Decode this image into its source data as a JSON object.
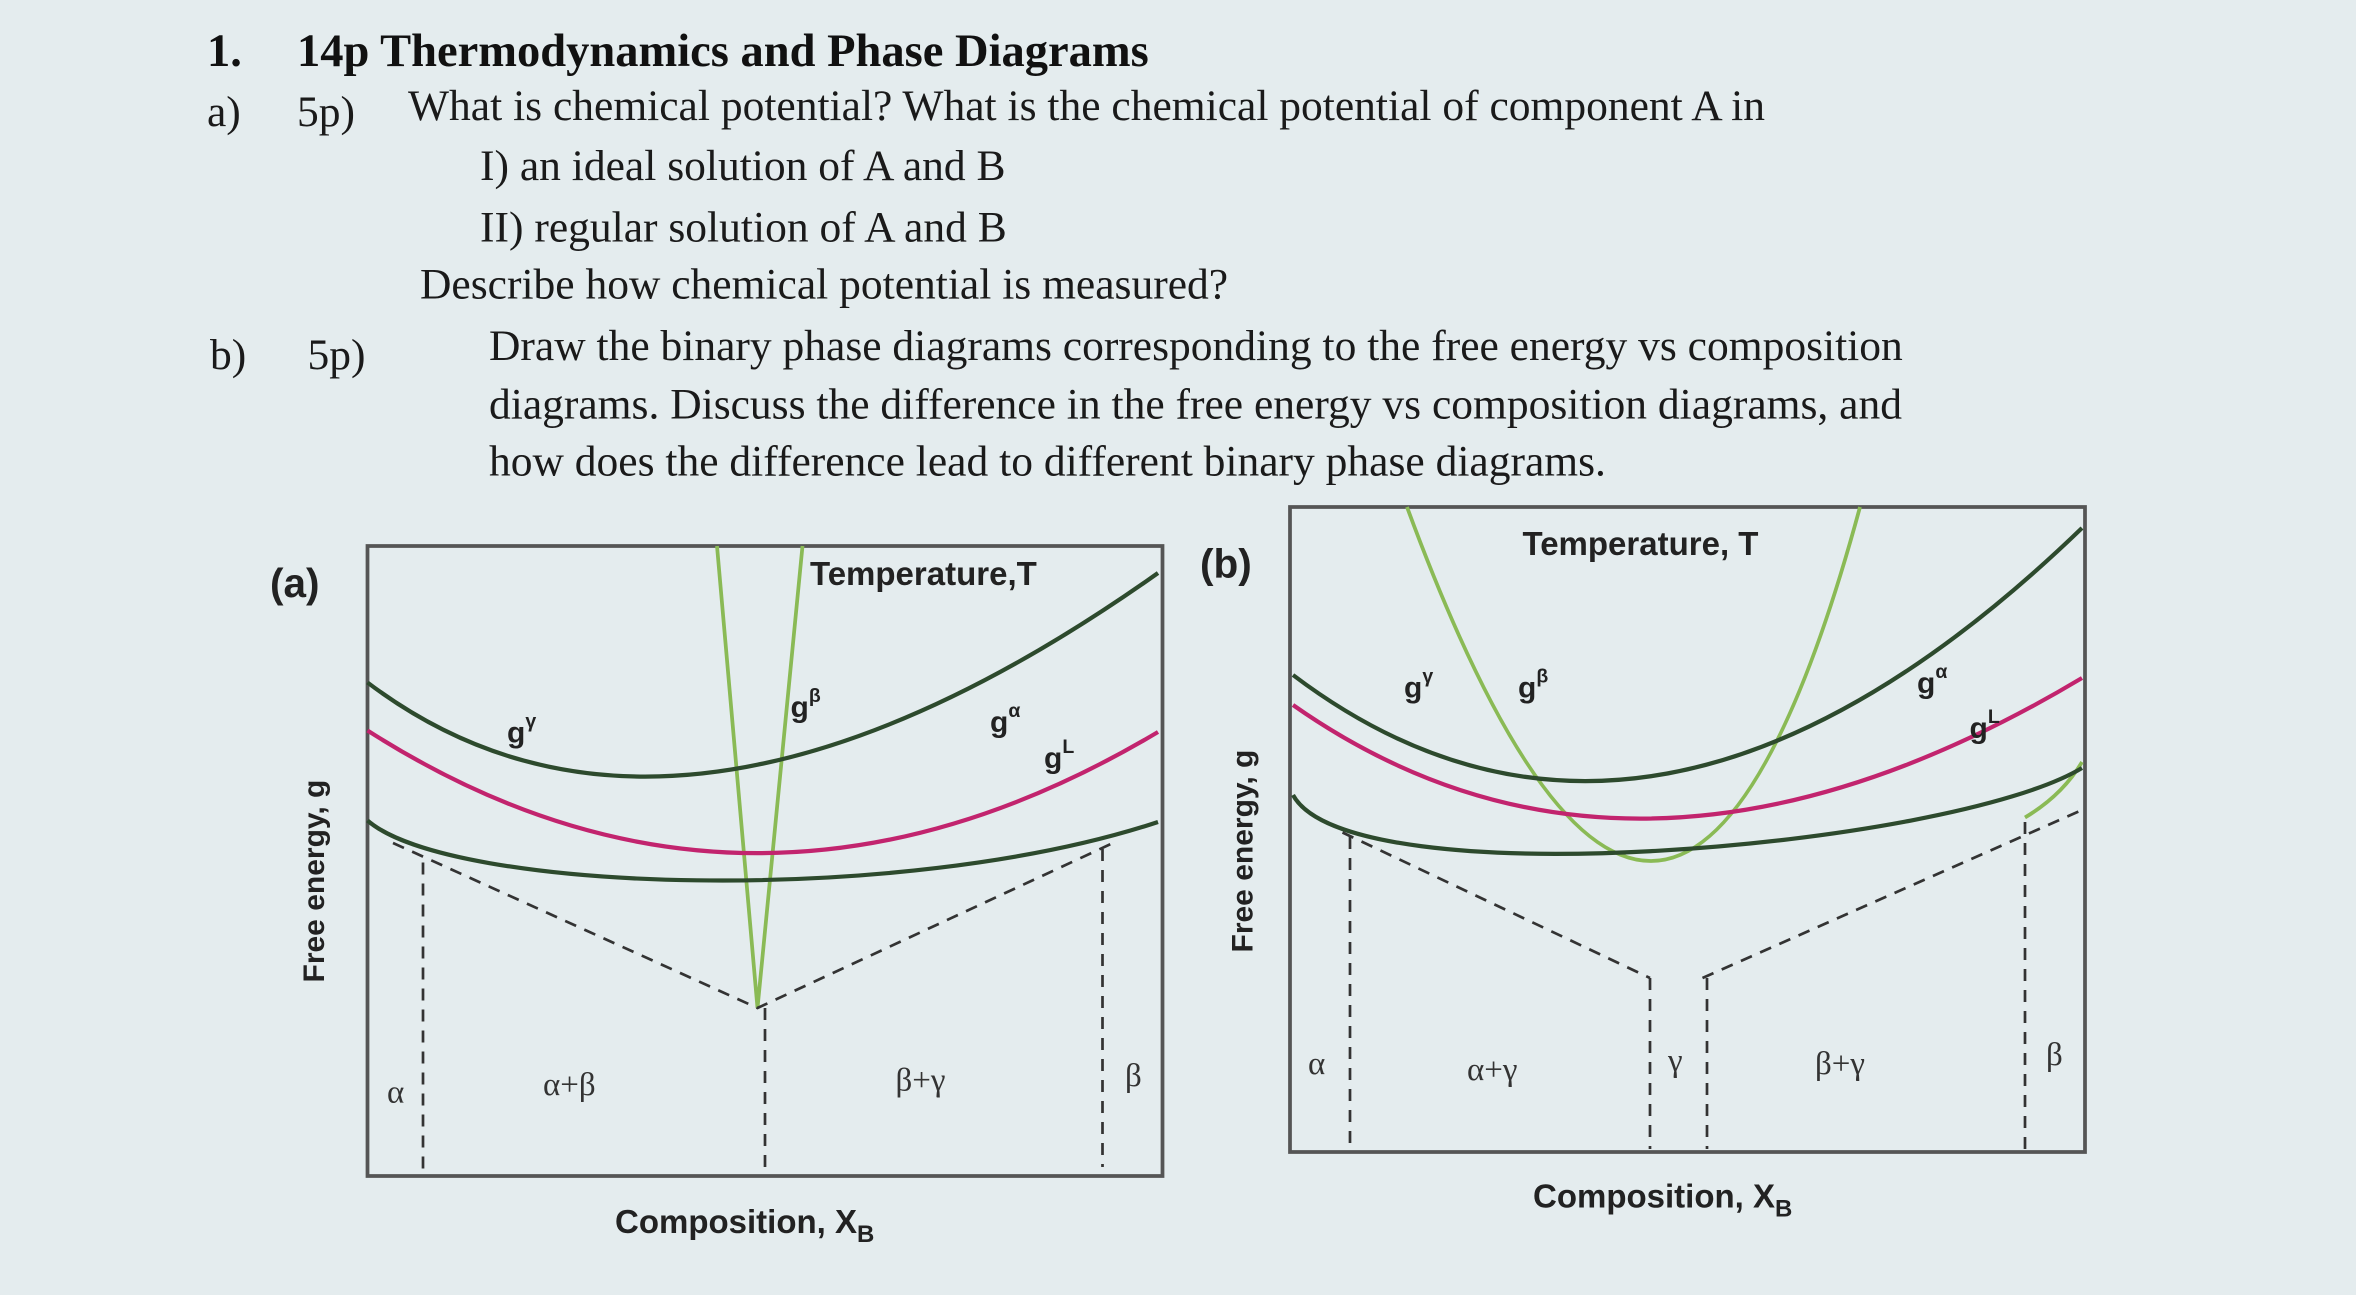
{
  "question": {
    "number": "1.",
    "title": "14p Thermodynamics and Phase Diagrams",
    "parts": [
      {
        "label": "a)",
        "points": "5p)",
        "lines": [
          "What is chemical potential? What is the chemical potential of component A in",
          "I) an ideal solution of A and B",
          "II) regular solution of A and B",
          "Describe how chemical potential is measured?"
        ]
      },
      {
        "label": "b)",
        "points": "5p)",
        "lines": [
          "Draw the binary phase diagrams corresponding to the free energy vs composition",
          "diagrams. Discuss the difference in the free energy vs composition diagrams, and",
          "how does the difference lead to different binary phase diagrams."
        ]
      }
    ]
  },
  "figures": [
    {
      "label": "(a)",
      "temperature": "Temperature,T",
      "y_axis": "Free energy, g",
      "x_axis": {
        "text": "Composition, X",
        "subscript": "B"
      },
      "curves": [
        {
          "base": "g",
          "sup": "γ"
        },
        {
          "base": "g",
          "sup": "β"
        },
        {
          "base": "g",
          "sup": "α"
        },
        {
          "base": "g",
          "sup": "L"
        }
      ],
      "phases": [
        "α",
        "α+β",
        "β+γ",
        "β"
      ]
    },
    {
      "label": "(b)",
      "temperature": "Temperature, T",
      "y_axis": "Free energy, g",
      "x_axis": {
        "text": "Composition, X",
        "subscript": "B"
      },
      "curves": [
        {
          "base": "g",
          "sup": "γ"
        },
        {
          "base": "g",
          "sup": "β"
        },
        {
          "base": "g",
          "sup": "α"
        },
        {
          "base": "g",
          "sup": "L"
        }
      ],
      "phases": [
        "α",
        "α+γ",
        "γ",
        "β+γ",
        "β"
      ]
    }
  ]
}
